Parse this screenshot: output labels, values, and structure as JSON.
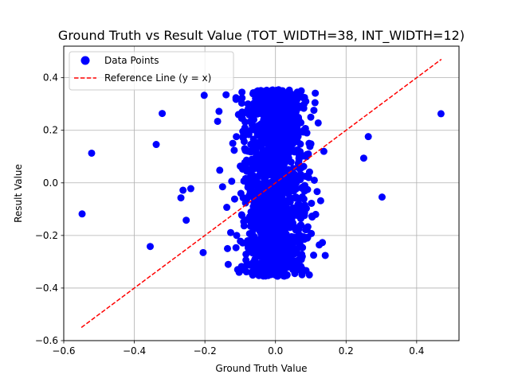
{
  "chart_data": {
    "type": "scatter",
    "title": "Ground Truth vs Result Value (TOT_WIDTH=38, INT_WIDTH=12)",
    "xlabel": "Ground Truth Value",
    "ylabel": "Result Value",
    "xlim": [
      -0.6,
      0.52
    ],
    "ylim": [
      -0.6,
      0.52
    ],
    "xticks": [
      -0.6,
      -0.4,
      -0.2,
      0.0,
      0.2,
      0.4
    ],
    "yticks": [
      -0.6,
      -0.4,
      -0.2,
      0.0,
      0.2,
      0.4
    ],
    "xtick_labels": [
      "−0.6",
      "−0.4",
      "−0.2",
      "0.0",
      "0.2",
      "0.4"
    ],
    "ytick_labels": [
      "−0.6",
      "−0.4",
      "−0.2",
      "0.0",
      "0.2",
      "0.4"
    ],
    "grid": true,
    "legend_position": "top-left",
    "series": [
      {
        "name": "Data Points",
        "kind": "scatter",
        "color": "#0000ff",
        "points": [
          [
            -0.548,
            -0.118
          ],
          [
            -0.521,
            0.113
          ],
          [
            -0.355,
            -0.242
          ],
          [
            -0.338,
            0.146
          ],
          [
            -0.321,
            0.264
          ],
          [
            -0.268,
            -0.057
          ],
          [
            -0.262,
            -0.028
          ],
          [
            -0.253,
            -0.142
          ],
          [
            -0.24,
            -0.022
          ],
          [
            -0.205,
            -0.265
          ],
          [
            -0.202,
            0.333
          ],
          [
            -0.164,
            0.234
          ],
          [
            -0.16,
            0.272
          ],
          [
            -0.158,
            0.048
          ],
          [
            -0.15,
            -0.015
          ],
          [
            -0.14,
            0.335
          ],
          [
            -0.138,
            -0.093
          ],
          [
            -0.136,
            -0.25
          ],
          [
            -0.134,
            -0.31
          ],
          [
            -0.127,
            -0.189
          ],
          [
            -0.124,
            0.006
          ],
          [
            -0.117,
            0.124
          ],
          [
            -0.112,
            0.324
          ],
          [
            -0.11,
            -0.2
          ],
          [
            -0.105,
            0.26
          ],
          [
            -0.098,
            -0.04
          ],
          [
            -0.095,
            0.345
          ],
          [
            -0.092,
            -0.33
          ],
          [
            -0.088,
            0.18
          ],
          [
            -0.085,
            0.07
          ],
          [
            -0.08,
            -0.14
          ],
          [
            -0.078,
            0.3
          ],
          [
            -0.075,
            -0.26
          ],
          [
            -0.07,
            0.01
          ],
          [
            -0.066,
            0.22
          ],
          [
            -0.063,
            -0.09
          ],
          [
            -0.058,
            0.13
          ],
          [
            -0.055,
            -0.31
          ],
          [
            -0.05,
            0.35
          ],
          [
            -0.046,
            -0.18
          ],
          [
            -0.042,
            0.04
          ],
          [
            -0.04,
            0.28
          ],
          [
            -0.036,
            -0.05
          ],
          [
            -0.033,
            0.17
          ],
          [
            -0.03,
            -0.23
          ],
          [
            -0.026,
            0.33
          ],
          [
            -0.022,
            -0.34
          ],
          [
            -0.02,
            0.09
          ],
          [
            -0.016,
            -0.12
          ],
          [
            -0.012,
            0.24
          ],
          [
            -0.01,
            -0.28
          ],
          [
            -0.006,
            0.0
          ],
          [
            -0.003,
            0.19
          ],
          [
            0.0,
            -0.2
          ],
          [
            0.003,
            0.31
          ],
          [
            0.006,
            -0.06
          ],
          [
            0.01,
            0.12
          ],
          [
            0.013,
            -0.3
          ],
          [
            0.016,
            0.35
          ],
          [
            0.02,
            -0.15
          ],
          [
            0.023,
            0.06
          ],
          [
            0.026,
            0.27
          ],
          [
            0.03,
            -0.02
          ],
          [
            0.033,
            -0.35
          ],
          [
            0.036,
            0.21
          ],
          [
            0.04,
            -0.1
          ],
          [
            0.043,
            0.33
          ],
          [
            0.046,
            -0.25
          ],
          [
            0.05,
            0.15
          ],
          [
            0.053,
            0.02
          ],
          [
            0.056,
            -0.32
          ],
          [
            0.06,
            0.29
          ],
          [
            0.063,
            -0.17
          ],
          [
            0.066,
            0.08
          ],
          [
            0.07,
            -0.06
          ],
          [
            0.073,
            0.35
          ],
          [
            0.076,
            -0.28
          ],
          [
            0.08,
            0.2
          ],
          [
            0.083,
            -0.01
          ],
          [
            0.086,
            0.31
          ],
          [
            0.09,
            -0.21
          ],
          [
            0.093,
            0.11
          ],
          [
            0.096,
            -0.35
          ],
          [
            0.1,
            0.25
          ],
          [
            0.104,
            -0.13
          ],
          [
            0.108,
            -0.275
          ],
          [
            0.11,
            0.01
          ],
          [
            0.112,
            0.305
          ],
          [
            0.114,
            -0.12
          ],
          [
            0.118,
            -0.033
          ],
          [
            0.121,
            0.228
          ],
          [
            0.124,
            -0.236
          ],
          [
            0.128,
            -0.068
          ],
          [
            0.133,
            -0.227
          ],
          [
            0.137,
            0.12
          ],
          [
            0.141,
            -0.276
          ],
          [
            0.25,
            0.094
          ],
          [
            0.263,
            0.176
          ],
          [
            0.302,
            -0.054
          ],
          [
            0.469,
            0.263
          ]
        ]
      },
      {
        "name": "Reference Line (y = x)",
        "kind": "line",
        "color": "#ff0000",
        "x": [
          -0.55,
          0.47
        ],
        "y": [
          -0.55,
          0.47
        ]
      }
    ]
  }
}
